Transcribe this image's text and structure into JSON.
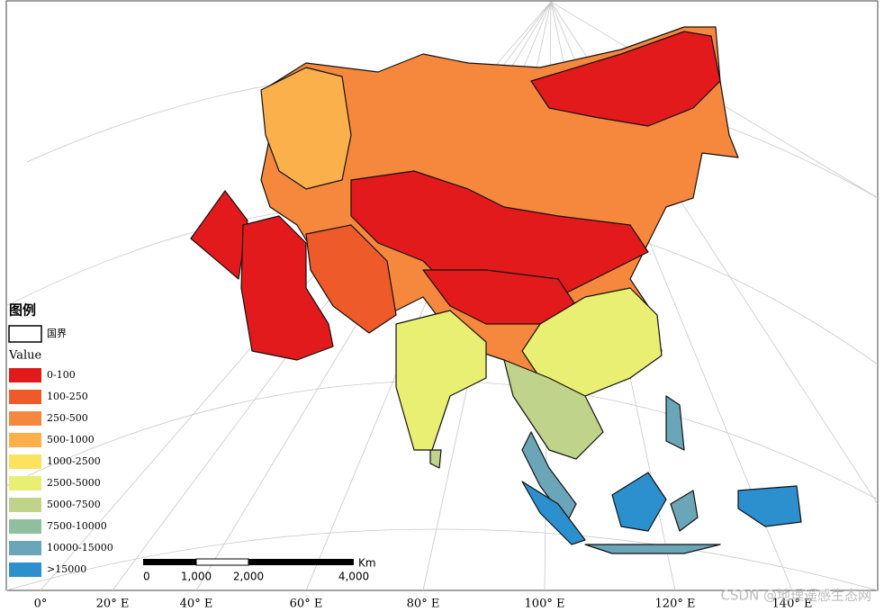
{
  "legend": {
    "title": "图例",
    "boundary_label": "国界",
    "value_title": "Value",
    "classes": [
      {
        "label": "0-100",
        "color": "#e31a1c"
      },
      {
        "label": "100-250",
        "color": "#ef5a2a"
      },
      {
        "label": "250-500",
        "color": "#f6883e"
      },
      {
        "label": "500-1000",
        "color": "#fbb04b"
      },
      {
        "label": "1000-2500",
        "color": "#fde25d"
      },
      {
        "label": "2500-5000",
        "color": "#e9ef72"
      },
      {
        "label": "5000-7500",
        "color": "#bfd48a"
      },
      {
        "label": "7500-10000",
        "color": "#8fbf9f"
      },
      {
        "label": "10000-15000",
        "color": "#6aa6b8"
      },
      {
        "label": ">15000",
        "color": "#2c8fce"
      }
    ]
  },
  "scale_bar": {
    "unit": "Km",
    "labels": [
      "0",
      "1,000",
      "2,000",
      "4,000"
    ]
  },
  "longitude_labels": [
    "0°",
    "20° E",
    "40° E",
    "60° E",
    "80° E",
    "100° E",
    "120° E",
    "140° E"
  ],
  "watermark": "CSDN @地理遥感生态网"
}
